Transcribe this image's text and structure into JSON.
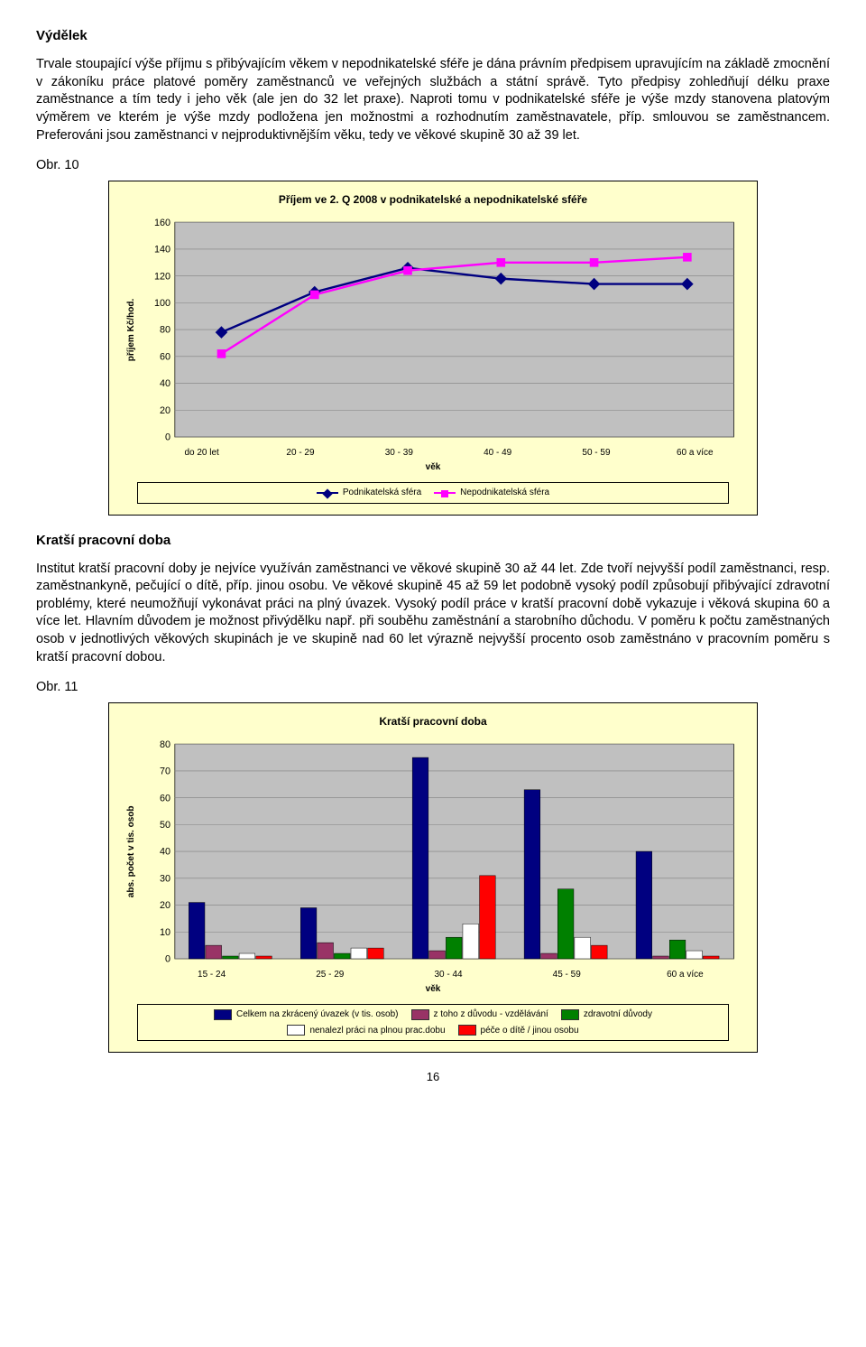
{
  "section1": {
    "heading": "Výdělek",
    "para": "Trvale stoupající výše příjmu s přibývajícím věkem v nepodnikatelské sféře je dána právním předpisem upravujícím na základě zmocnění v zákoníku práce platové poměry zaměstnanců ve veřejných službách a státní správě. Tyto předpisy zohledňují délku praxe zaměstnance a tím tedy i jeho věk (ale jen do 32 let praxe). Naproti tomu v podnikatelské sféře je výše mzdy stanovena platovým výměrem ve kterém je výše mzdy podložena jen možnostmi a rozhodnutím zaměstnavatele, příp. smlouvou se zaměstnancem. Preferováni jsou zaměstnanci v nejproduktivnějším věku, tedy ve věkové skupině 30 až 39 let.",
    "fig_label": "Obr. 10"
  },
  "chart1": {
    "type": "line",
    "title": "Příjem ve 2. Q 2008 v podnikatelské a nepodnikatelské sféře",
    "ylabel": "příjem Kč/hod.",
    "xlabel": "věk",
    "ylim": [
      0,
      160
    ],
    "ytick_step": 20,
    "background": "#c0c0c0",
    "panel_bg": "#ffffcc",
    "grid_color": "#808080",
    "categories": [
      "do 20 let",
      "20 - 29",
      "30 - 39",
      "40 - 49",
      "50 - 59",
      "60 a více"
    ],
    "series": [
      {
        "name": "Podnikatelská sféra",
        "color": "#000080",
        "marker": "diamond",
        "values": [
          78,
          108,
          126,
          118,
          114,
          114
        ]
      },
      {
        "name": "Nepodnikatelská sféra",
        "color": "#ff00ff",
        "marker": "square",
        "values": [
          62,
          106,
          124,
          130,
          130,
          134
        ]
      }
    ]
  },
  "section2": {
    "heading": "Kratší pracovní doba",
    "para": "Institut kratší pracovní doby je nejvíce využíván zaměstnanci ve věkové skupině 30 až 44 let. Zde tvoří nejvyšší podíl zaměstnanci, resp. zaměstnankyně, pečující o dítě, příp. jinou osobu. Ve věkové skupině 45 až 59 let podobně vysoký podíl způsobují přibývající zdravotní problémy, které neumožňují vykonávat práci na plný úvazek. Vysoký podíl práce v kratší pracovní době vykazuje i věková skupina 60 a více let. Hlavním důvodem je možnost přivýdělku např. při souběhu zaměstnání a starobního důchodu. V poměru k počtu zaměstnaných osob v jednotlivých věkových skupinách je ve skupině nad 60 let výrazně nejvyšší procento osob zaměstnáno v pracovním poměru s kratší pracovní dobou.",
    "fig_label": "Obr. 11"
  },
  "chart2": {
    "type": "bar",
    "title": "Kratší pracovní doba",
    "ylabel": "abs. počet v tis. osob",
    "xlabel": "věk",
    "ylim": [
      0,
      80
    ],
    "ytick_step": 10,
    "background": "#c0c0c0",
    "panel_bg": "#ffffcc",
    "grid_color": "#808080",
    "categories": [
      "15 - 24",
      "25 - 29",
      "30 - 44",
      "45 - 59",
      "60 a více"
    ],
    "series": [
      {
        "name": "Celkem na zkrácený úvazek (v tis. osob)",
        "color": "#000080",
        "values": [
          21,
          19,
          75,
          63,
          40
        ]
      },
      {
        "name": "z toho z důvodu  - vzdělávání",
        "color": "#993366",
        "values": [
          5,
          6,
          3,
          2,
          1
        ]
      },
      {
        "name": "zdravotní důvody",
        "color": "#008000",
        "values": [
          1,
          2,
          8,
          26,
          7
        ]
      },
      {
        "name": "nenalezl práci na plnou prac.dobu",
        "color": "#ffffff",
        "values": [
          2,
          4,
          13,
          8,
          3
        ]
      },
      {
        "name": "péče o dítě / jinou osobu",
        "color": "#ff0000",
        "values": [
          1,
          4,
          31,
          5,
          1
        ]
      }
    ]
  },
  "page_number": "16"
}
